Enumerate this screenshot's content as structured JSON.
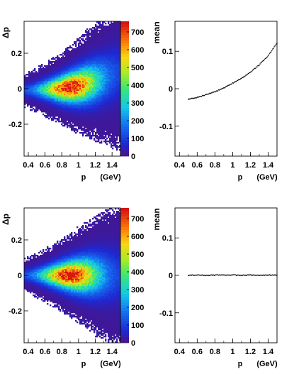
{
  "chart_data": [
    {
      "type": "heatmap",
      "position": "top-left",
      "ylabel": "Δp",
      "xlabel": "p",
      "xunit": "(GeV)",
      "xlim": [
        0.35,
        1.5
      ],
      "ylim": [
        -0.38,
        0.38
      ],
      "xticks": [
        "0.4",
        "0.6",
        "0.8",
        "1",
        "1.2",
        "1.4"
      ],
      "yticks": [
        "0.2",
        "0",
        "-0.2"
      ],
      "colorbar": {
        "ticks": [
          "100",
          "200",
          "300",
          "400",
          "500",
          "600",
          "700"
        ],
        "zero_label": "0",
        "min": 0,
        "max": 760
      },
      "band": {
        "center": [
          [
            0.35,
            -0.01
          ],
          [
            0.6,
            -0.005
          ],
          [
            0.8,
            0.0
          ],
          [
            1.0,
            0.015
          ],
          [
            1.2,
            0.04
          ],
          [
            1.5,
            0.09
          ]
        ],
        "peak_p": 0.9,
        "max_count": 760
      }
    },
    {
      "type": "scatter",
      "position": "top-right",
      "ylabel": "mean",
      "xlabel": "p",
      "xunit": "(GeV)",
      "xlim": [
        0.35,
        1.5
      ],
      "ylim": [
        -0.18,
        0.18
      ],
      "xticks": [
        "0.4",
        "0.6",
        "0.8",
        "1",
        "1.2",
        "1.4"
      ],
      "yticks": [
        "0.1",
        "0",
        "-0.1"
      ],
      "x": [
        0.5,
        0.6,
        0.7,
        0.8,
        0.9,
        1.0,
        1.1,
        1.2,
        1.3,
        1.4,
        1.5
      ],
      "y": [
        -0.028,
        -0.023,
        -0.016,
        -0.008,
        0.002,
        0.015,
        0.028,
        0.044,
        0.064,
        0.088,
        0.122
      ]
    },
    {
      "type": "heatmap",
      "position": "bottom-left",
      "ylabel": "Δp",
      "xlabel": "p",
      "xunit": "(GeV)",
      "xlim": [
        0.35,
        1.5
      ],
      "ylim": [
        -0.38,
        0.38
      ],
      "xticks": [
        "0.4",
        "0.6",
        "0.8",
        "1",
        "1.2",
        "1.4"
      ],
      "yticks": [
        "0.2",
        "0",
        "-0.2"
      ],
      "colorbar": {
        "ticks": [
          "100",
          "200",
          "300",
          "400",
          "500",
          "600",
          "700"
        ],
        "zero_label": "0",
        "min": 0,
        "max": 760
      },
      "band": {
        "center": [
          [
            0.35,
            0.0
          ],
          [
            1.5,
            0.0
          ]
        ],
        "peak_p": 0.9,
        "max_count": 760
      }
    },
    {
      "type": "scatter",
      "position": "bottom-right",
      "ylabel": "mean",
      "xlabel": "p",
      "xunit": "(GeV)",
      "xlim": [
        0.35,
        1.5
      ],
      "ylim": [
        -0.18,
        0.18
      ],
      "xticks": [
        "0.4",
        "0.6",
        "0.8",
        "1",
        "1.2",
        "1.4"
      ],
      "yticks": [
        "0.1",
        "0",
        "-0.1"
      ],
      "x": [
        0.5,
        0.6,
        0.7,
        0.8,
        0.9,
        1.0,
        1.1,
        1.2,
        1.3,
        1.4,
        1.5
      ],
      "y": [
        0.0,
        0.001,
        0.0,
        0.001,
        0.001,
        0.001,
        0.0,
        0.001,
        0.0,
        0.001,
        0.001
      ]
    }
  ]
}
